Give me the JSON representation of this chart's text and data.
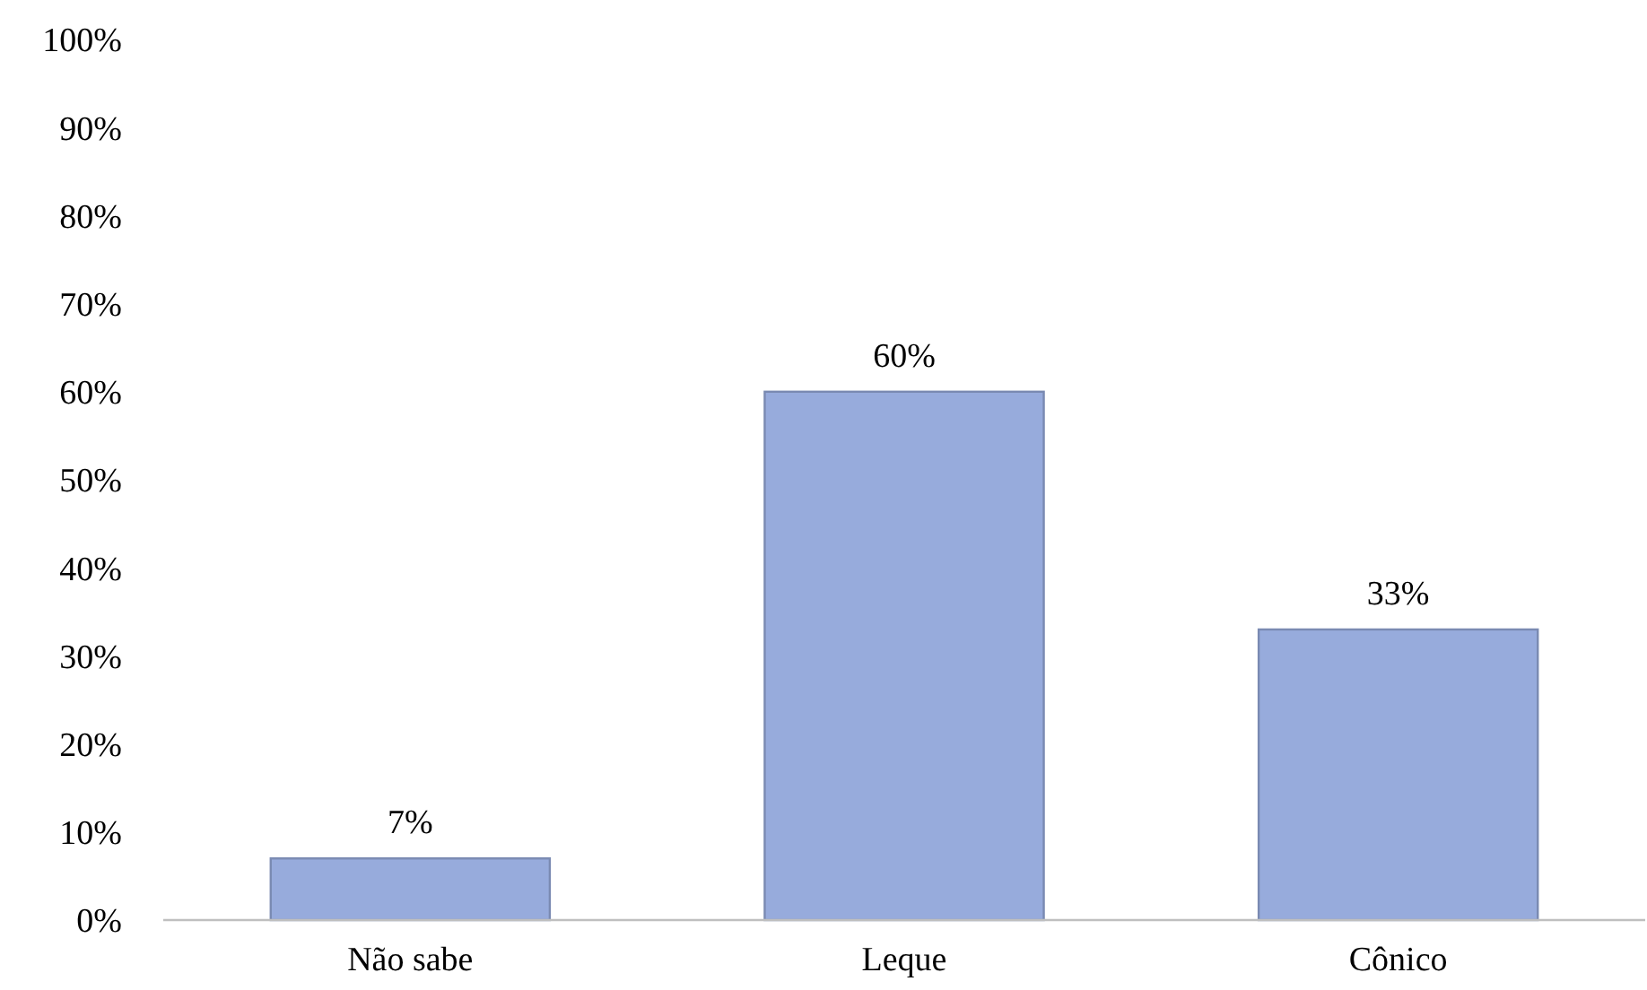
{
  "chart_data": {
    "type": "bar",
    "categories": [
      "Não sabe",
      "Leque",
      "Cônico"
    ],
    "values": [
      7,
      60,
      33
    ],
    "color": "#97abdc",
    "value_labels": [
      "7%",
      "60%",
      "33%"
    ],
    "ylim": [
      0,
      100
    ],
    "yticks": [
      {
        "value": 0,
        "label": "0%"
      },
      {
        "value": 10,
        "label": "10%"
      },
      {
        "value": 20,
        "label": "20%"
      },
      {
        "value": 30,
        "label": "30%"
      },
      {
        "value": 40,
        "label": "40%"
      },
      {
        "value": 50,
        "label": "50%"
      },
      {
        "value": 60,
        "label": "60%"
      },
      {
        "value": 70,
        "label": "70%"
      },
      {
        "value": 80,
        "label": "80%"
      },
      {
        "value": 90,
        "label": "90%"
      },
      {
        "value": 100,
        "label": "100%"
      }
    ]
  }
}
